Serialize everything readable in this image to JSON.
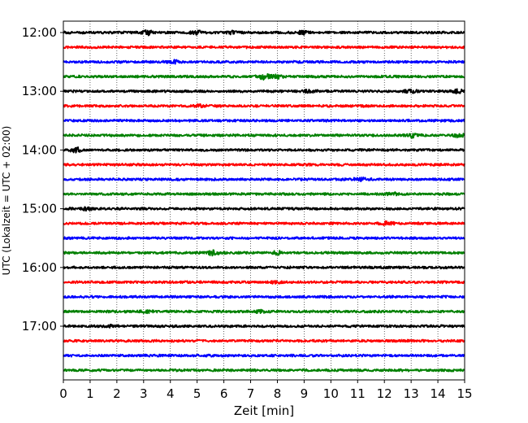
{
  "chart_data": {
    "type": "line",
    "title": "",
    "xlabel": "Zeit  [min]",
    "ylabel": "UTC (Lokalzeit = UTC + 02:00)",
    "xlim": [
      0,
      15
    ],
    "x_ticks": [
      "0",
      "1",
      "2",
      "3",
      "4",
      "5",
      "6",
      "7",
      "8",
      "9",
      "10",
      "11",
      "12",
      "13",
      "14",
      "15"
    ],
    "y_ticks": [
      "12:00",
      "13:00",
      "14:00",
      "15:00",
      "16:00",
      "17:00"
    ],
    "grid": {
      "x": true,
      "y": false,
      "style": "dotted"
    },
    "trace_interval_minutes": 15,
    "series": [
      {
        "start": "12:00",
        "color": "#000000"
      },
      {
        "start": "12:15",
        "color": "#ff0000"
      },
      {
        "start": "12:30",
        "color": "#0000ff"
      },
      {
        "start": "12:45",
        "color": "#008000"
      },
      {
        "start": "13:00",
        "color": "#000000"
      },
      {
        "start": "13:15",
        "color": "#ff0000"
      },
      {
        "start": "13:30",
        "color": "#0000ff"
      },
      {
        "start": "13:45",
        "color": "#008000"
      },
      {
        "start": "14:00",
        "color": "#000000"
      },
      {
        "start": "14:15",
        "color": "#ff0000"
      },
      {
        "start": "14:30",
        "color": "#0000ff"
      },
      {
        "start": "14:45",
        "color": "#008000"
      },
      {
        "start": "15:00",
        "color": "#000000"
      },
      {
        "start": "15:15",
        "color": "#ff0000"
      },
      {
        "start": "15:30",
        "color": "#0000ff"
      },
      {
        "start": "15:45",
        "color": "#008000"
      },
      {
        "start": "16:00",
        "color": "#000000"
      },
      {
        "start": "16:15",
        "color": "#ff0000"
      },
      {
        "start": "16:30",
        "color": "#0000ff"
      },
      {
        "start": "16:45",
        "color": "#008000"
      },
      {
        "start": "17:00",
        "color": "#000000"
      },
      {
        "start": "17:15",
        "color": "#ff0000"
      },
      {
        "start": "17:30",
        "color": "#0000ff"
      },
      {
        "start": "17:45",
        "color": "#008000"
      }
    ],
    "bursts": [
      {
        "series": 0,
        "x": 3.15,
        "amp": 2.2
      },
      {
        "series": 0,
        "x": 5.0,
        "amp": 1.8
      },
      {
        "series": 0,
        "x": 6.3,
        "amp": 1.4
      },
      {
        "series": 0,
        "x": 9.0,
        "amp": 1.8
      },
      {
        "series": 2,
        "x": 4.1,
        "amp": 1.5
      },
      {
        "series": 3,
        "x": 7.5,
        "amp": 2.8
      },
      {
        "series": 3,
        "x": 8.0,
        "amp": 2.0
      },
      {
        "series": 4,
        "x": 9.2,
        "amp": 1.4
      },
      {
        "series": 4,
        "x": 13.0,
        "amp": 1.7
      },
      {
        "series": 4,
        "x": 14.7,
        "amp": 1.9
      },
      {
        "series": 5,
        "x": 5.1,
        "amp": 1.3
      },
      {
        "series": 7,
        "x": 13.0,
        "amp": 2.2
      },
      {
        "series": 7,
        "x": 14.8,
        "amp": 1.8
      },
      {
        "series": 8,
        "x": 0.5,
        "amp": 2.3
      },
      {
        "series": 10,
        "x": 11.1,
        "amp": 2.0
      },
      {
        "series": 11,
        "x": 12.3,
        "amp": 1.5
      },
      {
        "series": 12,
        "x": 0.9,
        "amp": 1.6
      },
      {
        "series": 13,
        "x": 12.1,
        "amp": 1.9
      },
      {
        "series": 15,
        "x": 5.6,
        "amp": 2.5
      },
      {
        "series": 15,
        "x": 8.0,
        "amp": 1.8
      },
      {
        "series": 17,
        "x": 8.0,
        "amp": 1.3
      },
      {
        "series": 19,
        "x": 3.1,
        "amp": 1.3
      },
      {
        "series": 19,
        "x": 7.4,
        "amp": 1.2
      },
      {
        "series": 20,
        "x": 1.8,
        "amp": 1.0
      }
    ]
  }
}
